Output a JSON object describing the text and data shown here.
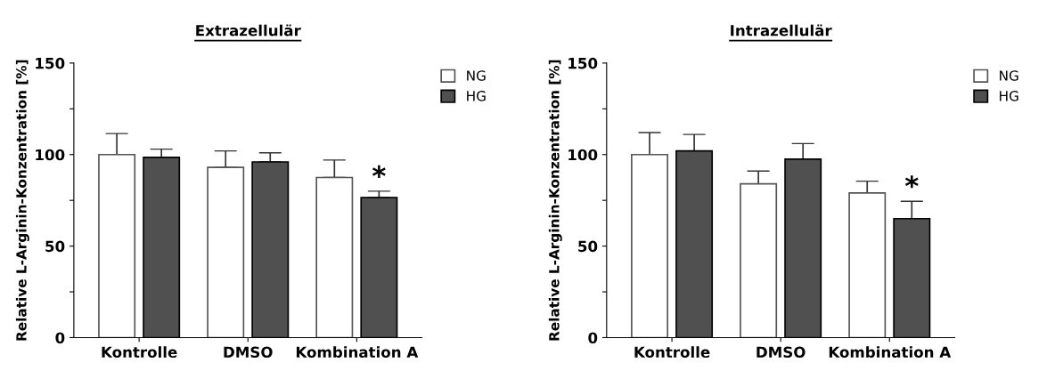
{
  "chart_data": [
    {
      "type": "bar",
      "title": "Extrazellulär",
      "ylabel": "Relative L-Arginin-Konzentration [%]",
      "categories": [
        "Kontrolle",
        "DMSO",
        "Kombination A"
      ],
      "ylim": [
        0,
        150
      ],
      "yticks": [
        0,
        {
          "value": 25,
          "label": null
        },
        50,
        {
          "value": 75,
          "label": null
        },
        100,
        {
          "value": 125,
          "label": null
        },
        150
      ],
      "legend": "top right",
      "grid": false,
      "series": [
        {
          "name": "NG",
          "color": "#ffffff",
          "values": [
            100,
            93,
            87.5
          ],
          "errors": [
            [
              100,
              111.5
            ],
            [
              93,
              102
            ],
            [
              87.5,
              97
            ]
          ]
        },
        {
          "name": "HG",
          "color": "#505050",
          "values": [
            98.5,
            96,
            76.5
          ],
          "errors": [
            [
              98.5,
              103
            ],
            [
              96,
              101
            ],
            [
              76.5,
              80
            ]
          ]
        }
      ],
      "annotations": [
        {
          "text": "*",
          "x": "Kombination A",
          "y": 80
        }
      ]
    },
    {
      "type": "bar",
      "title": "Intrazellulär",
      "ylabel": "Relative L-Arginin-Konzentration [%]",
      "categories": [
        "Kontrolle",
        "DMSO",
        "Kombination A"
      ],
      "ylim": [
        0,
        150
      ],
      "yticks": [
        0,
        {
          "value": 25,
          "label": null
        },
        50,
        {
          "value": 75,
          "label": null
        },
        100,
        {
          "value": 125,
          "label": null
        },
        150
      ],
      "legend": "top right",
      "grid": false,
      "series": [
        {
          "name": "NG",
          "color": "#ffffff",
          "values": [
            100,
            84,
            79
          ],
          "errors": [
            [
              100,
              112
            ],
            [
              84,
              91
            ],
            [
              79,
              85.5
            ]
          ]
        },
        {
          "name": "HG",
          "color": "#505050",
          "values": [
            102,
            97.5,
            65
          ],
          "errors": [
            [
              102,
              111
            ],
            [
              97.5,
              106
            ],
            [
              65,
              74.5
            ]
          ]
        }
      ],
      "annotations": [
        {
          "text": "*",
          "x": "Kombination A",
          "y": 74.5
        }
      ]
    }
  ]
}
